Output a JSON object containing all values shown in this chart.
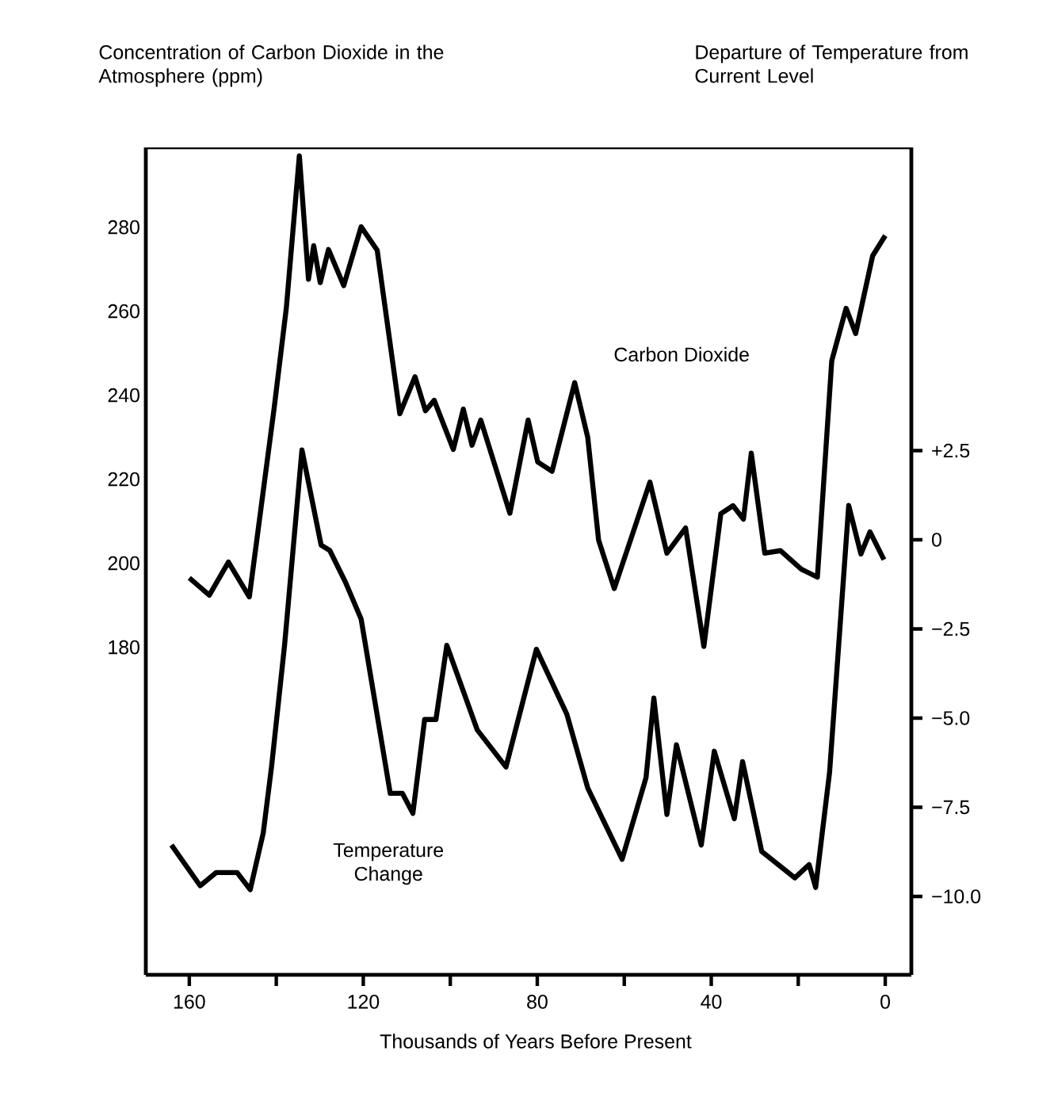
{
  "chart_data": {
    "type": "line",
    "xlabel": "Thousands of Years Before Present",
    "ylabel": "Concentration of Carbon Dioxide in the Atmosphere (ppm)",
    "y2label": "Departure of Temperature from Current Level",
    "xlim": [
      170,
      -6
    ],
    "ylim": [
      102,
      299
    ],
    "y2lim": [
      -12.2,
      11
    ],
    "xticks": [
      160,
      {
        "value": 140,
        "label": null
      },
      120,
      {
        "value": 100,
        "label": null
      },
      80,
      {
        "value": 60,
        "label": null
      },
      40,
      {
        "value": 20,
        "label": null
      },
      0
    ],
    "yticks": [
      180,
      200,
      220,
      240,
      260,
      280
    ],
    "y2ticks": [
      {
        "value": 2.5,
        "label": "+2.5"
      },
      0,
      {
        "value": -2.5,
        "label": "−2.5"
      },
      {
        "value": -5,
        "label": "−5.0"
      },
      {
        "value": -7.5,
        "label": "−7.5"
      },
      {
        "value": -10,
        "label": "−10.0"
      }
    ],
    "grid": false,
    "legend": false,
    "marker": "none",
    "line_style": "solid",
    "series": [
      {
        "name": "Carbon Dioxide",
        "color": "#000000",
        "x": [
          160,
          155.4,
          151,
          146.2,
          140.5,
          137.7,
          134.7,
          132.6,
          131.4,
          129.9,
          128,
          124.5,
          120.5,
          116.8,
          111.6,
          108.1,
          105.7,
          103.7,
          99.3,
          97,
          95,
          93,
          86.3,
          82.1,
          79.9,
          76.6,
          71.4,
          68.4,
          65.9,
          62.3,
          54.1,
          50.2,
          45.9,
          41.7,
          37.8,
          35,
          32.6,
          30.8,
          27.7,
          24.1,
          19.3,
          15.6,
          12.3,
          9,
          6.8,
          2.9,
          0
        ],
        "values": [
          196.5,
          192.4,
          200.3,
          192,
          236.9,
          260.7,
          297,
          267.6,
          275.6,
          266.8,
          274.7,
          266.1,
          280.1,
          274.5,
          235.6,
          244.4,
          236.3,
          238.8,
          227.1,
          236.7,
          228.1,
          234.1,
          211.9,
          234.1,
          224.1,
          221.9,
          243,
          230,
          205.5,
          194,
          219.3,
          202.4,
          208.4,
          180.2,
          211.8,
          213.7,
          210.5,
          226.2,
          202.4,
          203,
          198.6,
          196.7,
          248.2,
          260.7,
          254.7,
          273.2,
          278
        ]
      },
      {
        "name": "Temperature Change",
        "axis": "y2",
        "color": "#000000",
        "x": [
          164.1,
          157.5,
          153.8,
          149,
          146,
          143,
          141.1,
          138.1,
          134.1,
          129.7,
          127.7,
          124.1,
          120.5,
          113.8,
          111,
          108.6,
          105.9,
          103.3,
          100.8,
          93.8,
          87.2,
          80.2,
          73.2,
          68.4,
          60.5,
          55,
          53.2,
          50.2,
          48,
          42.3,
          39.3,
          34.7,
          32.8,
          28.4,
          20.8,
          17.5,
          16,
          12.8,
          8.4,
          5.6,
          3.5,
          0.3
        ],
        "values": [
          -8.56,
          -9.7,
          -9.33,
          -9.33,
          -9.81,
          -8.22,
          -6.37,
          -2.96,
          2.52,
          -0.15,
          -0.3,
          -1.19,
          -2.22,
          -7.11,
          -7.11,
          -7.67,
          -5.04,
          -5.04,
          -2.96,
          -5.33,
          -6.37,
          -3.07,
          -4.89,
          -6.96,
          -8.96,
          -6.67,
          -4.44,
          -7.7,
          -5.75,
          -8.56,
          -5.93,
          -7.82,
          -6.22,
          -8.74,
          -9.48,
          -9.11,
          -9.75,
          -6.52,
          0.96,
          -0.4,
          0.22,
          -0.56
        ]
      }
    ]
  }
}
